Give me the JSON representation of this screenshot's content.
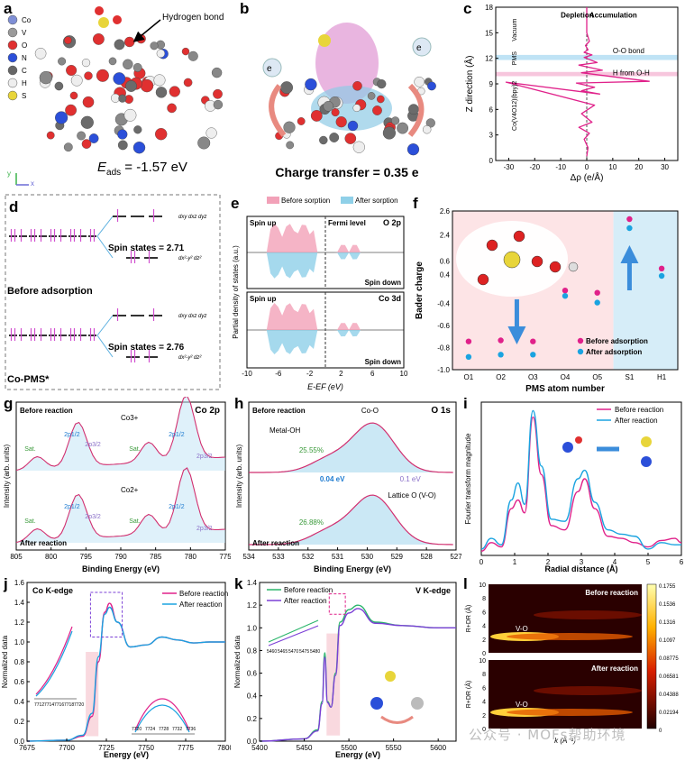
{
  "figure": {
    "labels": [
      "a",
      "b",
      "c",
      "d",
      "e",
      "f",
      "g",
      "h",
      "i",
      "j",
      "k",
      "l"
    ],
    "watermark": "公众号 · MOFs帮助环境"
  },
  "panel_a": {
    "legend": [
      {
        "el": "Co",
        "color": "#7f8fd6"
      },
      {
        "el": "V",
        "color": "#9a9a9a"
      },
      {
        "el": "O",
        "color": "#e03030"
      },
      {
        "el": "N",
        "color": "#2b4fd9"
      },
      {
        "el": "C",
        "color": "#666666"
      },
      {
        "el": "H",
        "color": "#eeeeee"
      },
      {
        "el": "S",
        "color": "#e8d53a"
      }
    ],
    "annotation": "Hydrogen bond",
    "energy": "E",
    "energy_sub": "ads",
    "energy_value": " = -1.57 eV",
    "axes": [
      "y",
      "z",
      "x"
    ]
  },
  "panel_b": {
    "caption": "Charge transfer = 0.35 e",
    "electron": "e"
  },
  "panel_d": {
    "before": "Before adsorption",
    "after": "Co-PMS*",
    "spin1": "Spin states = 2.71",
    "spin2": "Spin states = 2.76",
    "d_upper": "dxy dxz dyz",
    "d_lower": "dx²-y² dz²"
  },
  "panel_h": {
    "title": "O 1s",
    "top": "Before reaction",
    "bottom": "After reaction",
    "labels": [
      "Metal-OH",
      "Co-O",
      "25.55%",
      "26.88%",
      "0.04 eV",
      "0.1 eV",
      "Lattice O (V-O)"
    ],
    "xlabel": "Binding Energy (eV)",
    "ylabel": "Intensity (arb. units)"
  },
  "chart_data": [
    {
      "id": "c",
      "type": "line",
      "title": "",
      "annotations": [
        "Depletion",
        "Accumulation",
        "Vacuum",
        "PMS",
        "O-O bond",
        "H from O-H",
        "Co(V4O12)(bpy)2"
      ],
      "xlabel": "Δρ (e/Å)",
      "ylabel": "Z direction (Å)",
      "xlim": [
        -35,
        35
      ],
      "ylim": [
        0,
        18
      ],
      "xticks": [
        -30,
        -20,
        -10,
        0,
        10,
        20,
        30
      ],
      "yticks": [
        0,
        3,
        6,
        9,
        12,
        15,
        18
      ],
      "series": [
        {
          "x": [
            0,
            0,
            1,
            -0.5,
            0.5,
            -1,
            2,
            -1,
            4,
            -3,
            6,
            -2,
            24,
            -4,
            3,
            -2,
            5,
            -31,
            3,
            -2,
            2,
            -3,
            1,
            -1,
            0.5,
            0
          ],
          "y": [
            18,
            15,
            14,
            13.5,
            13,
            12.7,
            12.4,
            12.1,
            11.5,
            11.2,
            10.6,
            10.3,
            9.3,
            9.1,
            8.6,
            8.2,
            7.8,
            9.2,
            6.5,
            5.5,
            4.5,
            3.9,
            3.2,
            2.5,
            1.5,
            0.5
          ]
        }
      ]
    },
    {
      "id": "e",
      "type": "area",
      "legend": [
        "Before sorption",
        "After sorption"
      ],
      "subpanels": [
        {
          "title": "O 2p",
          "labels": [
            "Spin up",
            "Fermi level",
            "Spin down"
          ]
        },
        {
          "title": "Co 3d",
          "labels": [
            "Spin up",
            "Spin down"
          ]
        }
      ],
      "xlabel": "E-EF (eV)",
      "ylabel": "Partial density of states (a.u.)",
      "xlim": [
        -10,
        10
      ],
      "xticks": [
        -10,
        -6,
        -2,
        2,
        6,
        10
      ]
    },
    {
      "id": "f",
      "type": "scatter",
      "xlabel": "PMS atom number",
      "ylabel": "Bader charge",
      "categories": [
        "O1",
        "O2",
        "O3",
        "O4",
        "O5",
        "S1",
        "H1"
      ],
      "ylim": [
        -1.0,
        2.6
      ],
      "yticks": [
        -1.0,
        -0.8,
        -0.6,
        -0.4,
        0.4,
        0.6,
        2.4,
        2.6
      ],
      "series": [
        {
          "name": "Before adsorption",
          "color": "#e0218a",
          "values": [
            -0.77,
            -0.76,
            -0.77,
            -0.31,
            -0.33,
            2.51,
            0.45
          ]
        },
        {
          "name": "After adsorption",
          "color": "#1aa3e0",
          "values": [
            -0.86,
            -0.84,
            -0.84,
            -0.31,
            -0.37,
            2.48,
            0.42
          ]
        }
      ],
      "atom_labels": [
        "O1",
        "O2",
        "O3",
        "O4",
        "O5",
        "S1",
        "H1"
      ]
    },
    {
      "id": "g",
      "type": "line",
      "title": "Co 2p",
      "xlabel": "Binding Energy (eV)",
      "ylabel": "Intensity (arb. units)",
      "xlim": [
        805,
        775
      ],
      "xticks": [
        805,
        800,
        795,
        790,
        785,
        780,
        775
      ],
      "annotations": [
        "Before reaction",
        "After reaction",
        "Co3+",
        "Co2+",
        "Sat.",
        "2p1/2",
        "2p3/2"
      ]
    },
    {
      "id": "h",
      "type": "line",
      "title": "O 1s",
      "xlim": [
        534,
        527
      ],
      "xticks": [
        534,
        533,
        532,
        531,
        530,
        529,
        528,
        527
      ]
    },
    {
      "id": "i",
      "type": "line",
      "xlabel": "Radial distance (Å)",
      "ylabel": "Fourier transform magnitude",
      "xlim": [
        0,
        6
      ],
      "xticks": [
        0,
        1,
        2,
        3,
        4,
        5,
        6
      ],
      "series": [
        {
          "name": "Before reaction",
          "color": "#e0218a",
          "x": [
            0,
            0.3,
            0.6,
            0.9,
            1.1,
            1.3,
            1.55,
            1.8,
            2.1,
            2.5,
            2.9,
            3.1,
            3.4,
            3.8,
            4.2,
            4.6,
            5.0,
            5.4,
            5.8,
            6.0
          ],
          "y": [
            0.2,
            0.6,
            0.4,
            2.2,
            2.6,
            2.0,
            6.5,
            3.8,
            1.4,
            1.2,
            3.0,
            3.6,
            2.2,
            0.9,
            0.8,
            0.6,
            0.4,
            0.7,
            0.8,
            0.6
          ]
        },
        {
          "name": "After reaction",
          "color": "#1aa3e0",
          "x": [
            0,
            0.3,
            0.6,
            0.9,
            1.1,
            1.3,
            1.55,
            1.8,
            2.1,
            2.5,
            2.9,
            3.1,
            3.4,
            3.8,
            4.2,
            4.6,
            5.0,
            5.4,
            5.8,
            6.0
          ],
          "y": [
            0.3,
            0.8,
            0.5,
            2.6,
            3.4,
            2.4,
            6.8,
            4.2,
            1.7,
            1.6,
            3.6,
            4.0,
            2.5,
            1.2,
            1.0,
            0.9,
            0.3,
            0.6,
            0.5,
            0.5
          ]
        }
      ]
    },
    {
      "id": "j",
      "type": "line",
      "title": "Co K-edge",
      "xlabel": "Energy (eV)",
      "ylabel": "Normalized data",
      "xlim": [
        7675,
        7800
      ],
      "ylim": [
        0,
        1.6
      ],
      "xticks": [
        7675,
        7700,
        7725,
        7750,
        7775,
        7800
      ],
      "yticks": [
        0.0,
        0.2,
        0.4,
        0.6,
        0.8,
        1.0,
        1.2,
        1.4,
        1.6
      ],
      "inset_ticks": [
        [
          "7712",
          "7714",
          "7716",
          "7718",
          "7720"
        ],
        [
          "7720",
          "7724",
          "7728",
          "7732",
          "7736"
        ]
      ],
      "series": [
        {
          "name": "Before reaction",
          "color": "#e0218a",
          "x": [
            7675,
            7700,
            7710,
            7716,
            7720,
            7724,
            7727,
            7732,
            7740,
            7750,
            7760,
            7770,
            7780,
            7790,
            7800
          ],
          "y": [
            0.0,
            0.01,
            0.05,
            0.25,
            0.8,
            1.3,
            1.39,
            1.2,
            0.95,
            0.97,
            1.05,
            1.02,
            0.99,
            1.0,
            1.0
          ]
        },
        {
          "name": "After reaction",
          "color": "#1aa3e0",
          "x": [
            7675,
            7700,
            7710,
            7716,
            7720,
            7724,
            7727,
            7732,
            7740,
            7750,
            7760,
            7770,
            7780,
            7790,
            7800
          ],
          "y": [
            0.0,
            0.01,
            0.06,
            0.28,
            0.85,
            1.28,
            1.35,
            1.2,
            0.95,
            0.97,
            1.05,
            1.02,
            0.99,
            1.0,
            1.0
          ]
        }
      ]
    },
    {
      "id": "k",
      "type": "line",
      "title": "V K-edge",
      "xlabel": "Energy (eV)",
      "ylabel": "Normalized data",
      "xlim": [
        5400,
        5620
      ],
      "ylim": [
        0,
        1.4
      ],
      "xticks": [
        5400,
        5450,
        5500,
        5550,
        5600
      ],
      "yticks": [
        0.0,
        0.2,
        0.4,
        0.6,
        0.8,
        1.0,
        1.2,
        1.4
      ],
      "inset_ticks": [
        "5460",
        "5465",
        "5470",
        "5475",
        "5480"
      ],
      "series": [
        {
          "name": "Before reaction",
          "color": "#2ab56b",
          "x": [
            5400,
            5450,
            5465,
            5470,
            5473,
            5476,
            5480,
            5485,
            5490,
            5500,
            5510,
            5530,
            5560,
            5600,
            5620
          ],
          "y": [
            0.0,
            0.02,
            0.1,
            0.35,
            0.78,
            0.35,
            0.3,
            0.6,
            1.05,
            1.16,
            1.2,
            1.05,
            1.02,
            1.0,
            1.0
          ]
        },
        {
          "name": "After reaction",
          "color": "#7b3fd6",
          "x": [
            5400,
            5450,
            5465,
            5470,
            5473,
            5476,
            5480,
            5485,
            5490,
            5500,
            5510,
            5530,
            5560,
            5600,
            5620
          ],
          "y": [
            0.0,
            0.02,
            0.09,
            0.33,
            0.74,
            0.34,
            0.3,
            0.58,
            1.02,
            1.13,
            1.17,
            1.04,
            1.02,
            1.0,
            1.0
          ]
        }
      ]
    },
    {
      "id": "l",
      "type": "heatmap",
      "xlabel": "k (Å⁻¹)",
      "ylabel": "R+DR (Å)",
      "subpanels": [
        {
          "label": "Before reaction",
          "bond": "V-O"
        },
        {
          "label": "After reaction",
          "bond": "V-O"
        }
      ],
      "yticks": [
        0,
        2,
        4,
        6,
        8,
        10
      ],
      "colorbar": [
        0.1755,
        0.1536,
        0.1316,
        0.1097,
        0.08775,
        0.06581,
        0.04388,
        0.02194,
        0.0
      ]
    }
  ]
}
